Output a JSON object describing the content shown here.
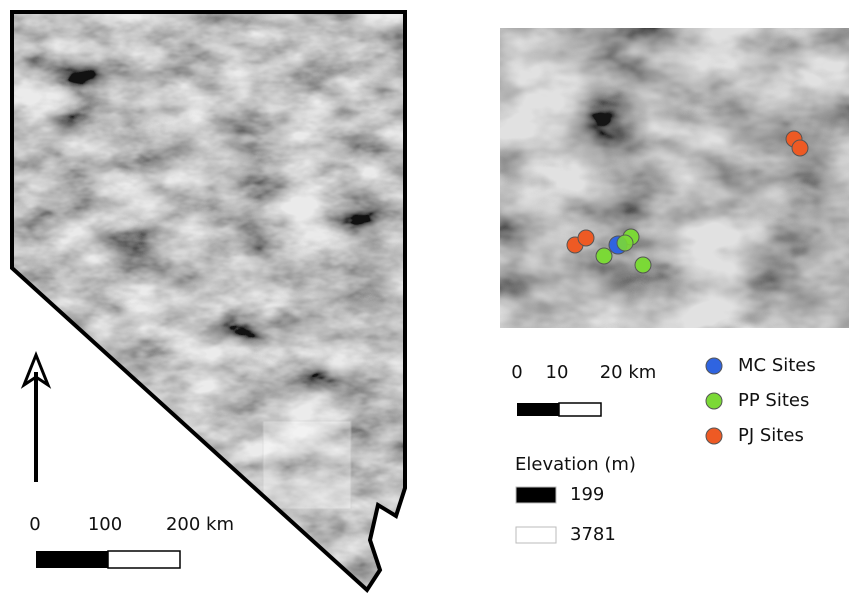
{
  "main_map": {
    "scale_bar": {
      "labels": [
        "0",
        "100",
        "200 km"
      ]
    }
  },
  "inset_map": {
    "scale_bar": {
      "labels": [
        "0",
        "10",
        "20 km"
      ]
    },
    "elevation_legend": {
      "title": "Elevation (m)",
      "items": [
        {
          "label": "199",
          "color": "#000000"
        },
        {
          "label": "3781",
          "color": "#ffffff"
        }
      ]
    },
    "sites_legend": [
      {
        "label": "MC Sites",
        "color": "#2f64e0"
      },
      {
        "label": "PP Sites",
        "color": "#7bd936"
      },
      {
        "label": "PJ Sites",
        "color": "#ee5a24"
      }
    ]
  }
}
